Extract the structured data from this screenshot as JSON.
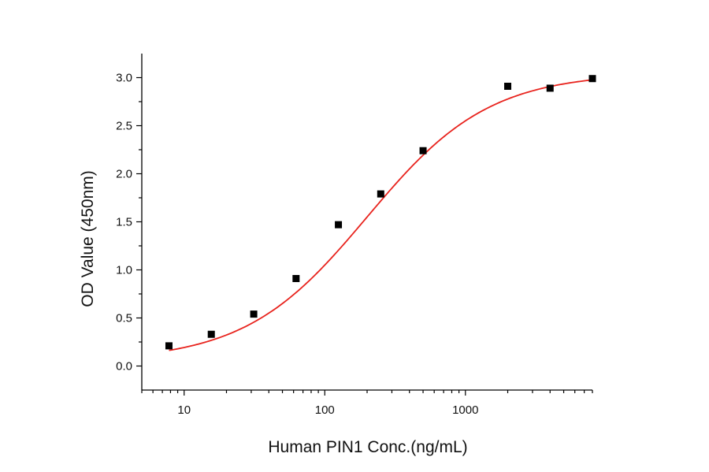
{
  "chart_data": {
    "type": "scatter",
    "title": "",
    "xlabel": "Human PIN1 Conc.(ng/mL)",
    "ylabel": "OD Value (450nm)",
    "x_scale": "log",
    "xlim": [
      5,
      8000
    ],
    "ylim": [
      -0.25,
      3.25
    ],
    "x_ticks": [
      10,
      100,
      1000
    ],
    "x_tick_labels": [
      "10",
      "100",
      "1000"
    ],
    "y_ticks": [
      0.0,
      0.5,
      1.0,
      1.5,
      2.0,
      2.5,
      3.0
    ],
    "y_tick_labels": [
      "0.0",
      "0.5",
      "1.0",
      "1.5",
      "2.0",
      "2.5",
      "3.0"
    ],
    "grid": false,
    "legend": "none",
    "series": [
      {
        "kind": "points",
        "marker": "square",
        "color": "#000000",
        "x": [
          7.8,
          15.6,
          31.25,
          62.5,
          125,
          250,
          500,
          2000,
          4000,
          8000
        ],
        "y": [
          0.21,
          0.33,
          0.54,
          0.91,
          1.47,
          1.79,
          2.24,
          2.91,
          2.89,
          2.99
        ]
      },
      {
        "kind": "fit_curve",
        "color": "#e8231d",
        "model": "4PL",
        "params": {
          "bottom": 0.05,
          "top": 3.05,
          "ec50": 200,
          "hill": 1.0
        }
      }
    ]
  }
}
